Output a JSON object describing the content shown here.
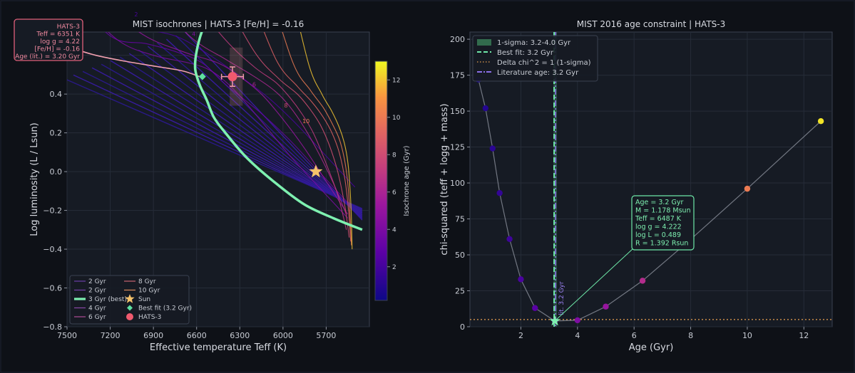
{
  "chart_data": [
    {
      "type": "line",
      "title": "MIST isochrones  |  HATS-3  [Fe/H] = -0.16",
      "xlabel": "Effective temperature  Teff (K)",
      "ylabel": "Log luminosity  (L / Lsun)",
      "xlim": [
        7500,
        5400
      ],
      "ylim": [
        -0.8,
        0.72
      ],
      "xticks": [
        7500,
        7200,
        6900,
        6600,
        6300,
        6000,
        5700
      ],
      "yticks": [
        -0.8,
        -0.6,
        -0.4,
        -0.2,
        0.0,
        0.2,
        0.4,
        0.6
      ],
      "grid": true,
      "legend_position": "bottom-left",
      "colorbar": {
        "label": "Isochrone age (Gyr)",
        "range": [
          0.2,
          13.0
        ],
        "ticks": [
          2,
          4,
          6,
          8,
          10,
          12
        ]
      },
      "isochrones": [
        {
          "age": 2,
          "x": [
            7500,
            7200,
            7000,
            6750,
            6550,
            6350,
            6100,
            5900,
            5700,
            5500
          ],
          "y": [
            0.95,
            0.78,
            0.74,
            0.7,
            0.62,
            0.52,
            0.38,
            0.24,
            0.08,
            -0.08
          ]
        },
        {
          "age": 3,
          "x": [
            7500,
            7200,
            6950,
            6750,
            6560,
            6400,
            6150,
            5950,
            5750,
            5550
          ],
          "y": [
            0.95,
            0.7,
            0.66,
            0.62,
            0.56,
            0.45,
            0.3,
            0.16,
            0.0,
            -0.16
          ]
        },
        {
          "age": 4,
          "x": [
            7450,
            7150,
            6900,
            6650,
            6500,
            6350,
            6150,
            5950,
            5750,
            5550
          ],
          "y": [
            0.9,
            0.68,
            0.6,
            0.56,
            0.52,
            0.43,
            0.26,
            0.08,
            -0.08,
            -0.24
          ]
        },
        {
          "age": 5,
          "x": [
            7350,
            7000,
            6700,
            6450,
            6300,
            6150,
            6000,
            5850,
            5700,
            5550
          ],
          "y": [
            0.95,
            0.72,
            0.62,
            0.56,
            0.49,
            0.4,
            0.27,
            0.12,
            -0.05,
            -0.22
          ]
        },
        {
          "age": 6,
          "x": [
            6950,
            6650,
            6400,
            6220,
            6080,
            5980,
            5880,
            5770,
            5650,
            5560
          ],
          "y": [
            0.95,
            0.7,
            0.58,
            0.5,
            0.43,
            0.36,
            0.26,
            0.12,
            -0.06,
            -0.22
          ]
        },
        {
          "age": 7,
          "x": [
            6700,
            6400,
            6200,
            6050,
            5950,
            5870,
            5790,
            5710,
            5620,
            5560
          ],
          "y": [
            0.95,
            0.68,
            0.54,
            0.46,
            0.38,
            0.3,
            0.2,
            0.06,
            -0.12,
            -0.3
          ]
        },
        {
          "age": 8,
          "x": [
            6450,
            6200,
            6030,
            5900,
            5810,
            5740,
            5680,
            5620,
            5570,
            5540
          ],
          "y": [
            0.95,
            0.62,
            0.48,
            0.4,
            0.32,
            0.24,
            0.14,
            0.0,
            -0.18,
            -0.34
          ]
        },
        {
          "age": 9,
          "x": [
            6250,
            6050,
            5900,
            5800,
            5720,
            5660,
            5610,
            5570,
            5545,
            5530
          ],
          "y": [
            0.95,
            0.58,
            0.44,
            0.36,
            0.28,
            0.2,
            0.1,
            -0.04,
            -0.2,
            -0.36
          ]
        },
        {
          "age": 10,
          "x": [
            6100,
            5930,
            5810,
            5720,
            5660,
            5610,
            5575,
            5550,
            5535,
            5525
          ],
          "y": [
            0.95,
            0.56,
            0.42,
            0.33,
            0.25,
            0.17,
            0.07,
            -0.06,
            -0.22,
            -0.38
          ]
        },
        {
          "age": 12,
          "x": [
            5950,
            5820,
            5730,
            5660,
            5610,
            5575,
            5550,
            5535,
            5525,
            5520
          ],
          "y": [
            0.95,
            0.55,
            0.4,
            0.31,
            0.23,
            0.15,
            0.05,
            -0.08,
            -0.24,
            -0.4
          ]
        }
      ],
      "best_isochrone": {
        "name": "3 Gyr (best)",
        "x": [
          6460,
          6510,
          6560,
          6600,
          6610,
          6580,
          6530,
          6480,
          6400,
          6250,
          6050,
          5850,
          5650,
          5450
        ],
        "y": [
          0.85,
          0.8,
          0.73,
          0.62,
          0.53,
          0.45,
          0.37,
          0.28,
          0.2,
          0.07,
          -0.06,
          -0.17,
          -0.24,
          -0.3
        ]
      },
      "contour_labels": [
        {
          "text": "2",
          "x": 7020,
          "y": 0.8
        },
        {
          "text": "4",
          "x": 6620,
          "y": 0.7
        },
        {
          "text": "6",
          "x": 6200,
          "y": 0.44
        },
        {
          "text": "8",
          "x": 5980,
          "y": 0.33
        },
        {
          "text": "10",
          "x": 5840,
          "y": 0.25
        }
      ],
      "population_fan": {
        "from": [
          7100,
          0.6
        ],
        "to": [
          5450,
          -0.22
        ],
        "count": 14
      },
      "pink_track": {
        "x": [
          7480,
          7300,
          7100,
          6900,
          6700,
          6580
        ],
        "y": [
          0.64,
          0.6,
          0.57,
          0.545,
          0.52,
          0.49
        ]
      },
      "box": {
        "x": [
          6370,
          6280
        ],
        "y": [
          0.34,
          0.64
        ]
      },
      "points": [
        {
          "name": "Sun",
          "x": 5772,
          "y": 0.0,
          "color": "#f5c26b",
          "marker": "star"
        },
        {
          "name": "Best fit (3.2 Gyr)",
          "x": 6560,
          "y": 0.49,
          "color": "#5ee0a0",
          "marker": "diamond"
        },
        {
          "name": "HATS-3",
          "x": 6351,
          "y": 0.49,
          "xerr": 76,
          "yerr": 0.05,
          "color": "#f05a6e",
          "marker": "circle"
        }
      ],
      "info_box": [
        "HATS-3",
        "Teff = 6351 K",
        "log g = 4.22",
        "[Fe/H] = -0.16",
        "Age (lit.) = 3.20 Gyr"
      ],
      "legend": [
        {
          "label": "2 Gyr",
          "color": "#6a40a8",
          "kind": "line"
        },
        {
          "label": "2 Gyr",
          "color": "#7640a8",
          "kind": "line"
        },
        {
          "label": "3 Gyr (best)",
          "color": "#7ef0b0",
          "kind": "thick"
        },
        {
          "label": "4 Gyr",
          "color": "#8a48a8",
          "kind": "line"
        },
        {
          "label": "6 Gyr",
          "color": "#b04e98",
          "kind": "line"
        },
        {
          "label": "8 Gyr",
          "color": "#c86470",
          "kind": "line"
        },
        {
          "label": "10 Gyr",
          "color": "#d98a5a",
          "kind": "line"
        },
        {
          "label": "Sun",
          "color": "#f5c26b",
          "kind": "star"
        },
        {
          "label": "Best fit (3.2 Gyr)",
          "color": "#5ee0a0",
          "kind": "diamond"
        },
        {
          "label": "HATS-3",
          "color": "#f05a6e",
          "kind": "circle"
        }
      ]
    },
    {
      "type": "scatter",
      "title": "MIST 2016 age constraint  |  HATS-3",
      "xlabel": "Age  (Gyr)",
      "ylabel": "chi-squared  (teff + logg + mass)",
      "xlim": [
        0.2,
        13.0
      ],
      "ylim": [
        0,
        205
      ],
      "xticks": [
        2,
        4,
        6,
        8,
        10,
        12
      ],
      "yticks": [
        0,
        25,
        50,
        75,
        100,
        125,
        150,
        175,
        200
      ],
      "grid": true,
      "legend_position": "top-left",
      "series": [
        {
          "name": "",
          "x": [
            0.5,
            0.75,
            1.0,
            1.25,
            1.6,
            2.0,
            2.5,
            3.2,
            4.0,
            5.0,
            6.3,
            7.9,
            10.0,
            12.6
          ],
          "y": [
            172,
            152,
            124,
            93,
            61,
            33,
            13,
            4,
            4.5,
            14,
            32,
            59,
            96,
            143
          ]
        }
      ],
      "best_fit": {
        "x": 3.2,
        "y": 4
      },
      "one_sigma": [
        3.2,
        4.0
      ],
      "delta_chi2_line": 5,
      "literature_age": 3.2,
      "vline_label": "lit. 3.2 Gyr",
      "legend": [
        {
          "label": "1-sigma: 3.2-4.0 Gyr",
          "kind": "patch",
          "color": "#3e8f5f"
        },
        {
          "label": "Best fit: 3.2 Gyr",
          "kind": "dashed",
          "color": "#6ee8a8"
        },
        {
          "label": "Delta chi^2 = 1 (1-sigma)",
          "kind": "dotted",
          "color": "#e8a050"
        },
        {
          "label": "Literature age: 3.2 Gyr",
          "kind": "dashdot",
          "color": "#8a6fe8"
        }
      ],
      "annotation": {
        "lines": [
          "Age = 3.2 Gyr",
          "M = 1.178 Msun",
          "Teff = 6487 K",
          "log g = 4.222",
          "log L = 0.489",
          "R = 1.392 Rsun"
        ],
        "anchor": [
          3.2,
          4
        ]
      }
    }
  ]
}
